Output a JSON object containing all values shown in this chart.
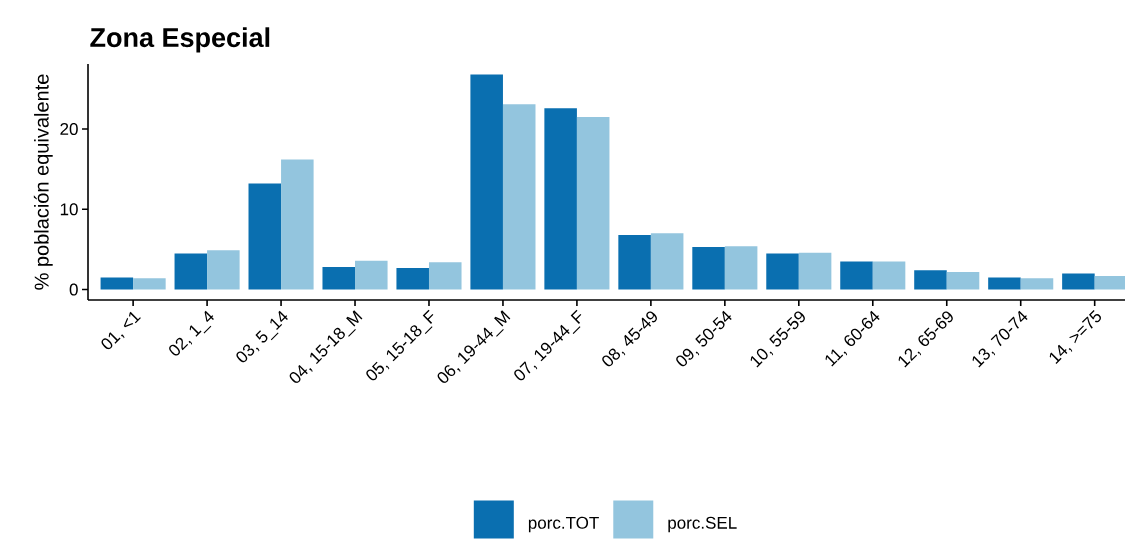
{
  "chart_data": {
    "type": "bar",
    "title": "Zona Especial",
    "ylabel": "% población equivalente",
    "categories": [
      "01, <1",
      "02, 1_4",
      "03, 5_14",
      "04, 15-18_M",
      "05, 15-18_F",
      "06, 19-44_M",
      "07, 19-44_F",
      "08, 45-49",
      "09, 50-54",
      "10, 55-59",
      "11, 60-64",
      "12, 65-69",
      "13, 70-74",
      "14, >=75"
    ],
    "series": [
      {
        "name": "porc.TOT",
        "color": "#0a6fb0",
        "values": [
          1.5,
          4.5,
          13.2,
          2.8,
          2.7,
          26.8,
          22.6,
          6.8,
          5.3,
          4.5,
          3.5,
          2.4,
          1.5,
          2.0
        ]
      },
      {
        "name": "porc.SEL",
        "color": "#93c5de",
        "values": [
          1.4,
          4.9,
          16.2,
          3.6,
          3.4,
          23.1,
          21.5,
          7.0,
          5.4,
          4.6,
          3.5,
          2.2,
          1.4,
          1.7
        ]
      }
    ],
    "ylim": [
      -1.3,
      28.1
    ],
    "yticks": [
      0,
      10,
      20
    ],
    "grid": false,
    "legend": "bottom"
  }
}
